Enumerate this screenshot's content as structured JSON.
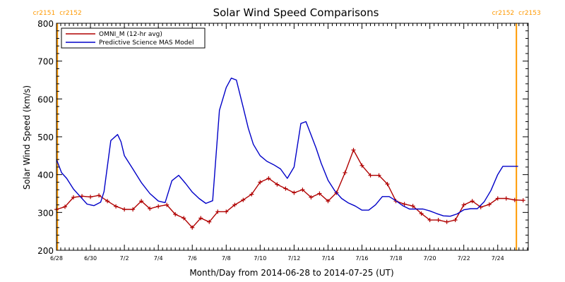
{
  "chart_data": {
    "type": "line",
    "title": "Solar Wind Speed Comparisons",
    "xlabel": "Month/Day from 2014-06-28 to 2014-07-25 (UT)",
    "ylabel": "Solar Wind Speed (km/s)",
    "xlim": [
      0,
      27.8
    ],
    "ylim": [
      200,
      800
    ],
    "x_unit": "days since 2014-06-28",
    "x_ticks": [
      {
        "x": 0,
        "label": "6/28"
      },
      {
        "x": 2,
        "label": "6/30"
      },
      {
        "x": 4,
        "label": "7/2"
      },
      {
        "x": 6,
        "label": "7/4"
      },
      {
        "x": 8,
        "label": "7/6"
      },
      {
        "x": 10,
        "label": "7/8"
      },
      {
        "x": 12,
        "label": "7/10"
      },
      {
        "x": 14,
        "label": "7/12"
      },
      {
        "x": 16,
        "label": "7/14"
      },
      {
        "x": 18,
        "label": "7/16"
      },
      {
        "x": 20,
        "label": "7/18"
      },
      {
        "x": 22,
        "label": "7/20"
      },
      {
        "x": 24,
        "label": "7/22"
      },
      {
        "x": 26,
        "label": "7/24"
      }
    ],
    "y_ticks": [
      200,
      300,
      400,
      500,
      600,
      700,
      800
    ],
    "legend_position": "top-left",
    "colors": {
      "omni": "#b00000",
      "model": "#0000c8",
      "rotation": "#ff9900",
      "axes": "#000000"
    },
    "rotation_markers": [
      {
        "x": 0.05,
        "left_label": "cr2151",
        "right_label": "cr2152"
      },
      {
        "x": 27.1,
        "left_label": "cr2152",
        "right_label": "cr2153"
      }
    ],
    "series": [
      {
        "name": "OMNI_M (12-hr avg)",
        "key": "omni",
        "markers": true,
        "x": [
          0.0,
          0.5,
          1.0,
          1.5,
          2.0,
          2.5,
          3.0,
          3.5,
          4.0,
          4.5,
          5.0,
          5.5,
          6.0,
          6.5,
          7.0,
          7.5,
          8.0,
          8.5,
          9.0,
          9.5,
          10.0,
          10.5,
          11.0,
          11.5,
          12.0,
          12.5,
          13.0,
          13.5,
          14.0,
          14.5,
          15.0,
          15.5,
          16.0,
          16.5,
          17.0,
          17.5,
          18.0,
          18.5,
          19.0,
          19.5,
          20.0,
          20.5,
          21.0,
          21.5,
          22.0,
          22.5,
          23.0,
          23.5,
          24.0,
          24.5,
          25.0,
          25.5,
          26.0,
          26.5,
          27.0,
          27.5
        ],
        "y": [
          308,
          315,
          340,
          343,
          341,
          345,
          330,
          316,
          308,
          308,
          330,
          310,
          316,
          320,
          295,
          285,
          260,
          285,
          275,
          302,
          302,
          320,
          333,
          348,
          380,
          390,
          374,
          363,
          352,
          360,
          340,
          350,
          330,
          352,
          405,
          465,
          424,
          398,
          398,
          375,
          330,
          322,
          317,
          297,
          280,
          280,
          275,
          280,
          320,
          330,
          314,
          321,
          337,
          337,
          333,
          332
        ]
      },
      {
        "name": "Predictive Science MAS Model",
        "key": "model",
        "markers": false,
        "x": [
          0.0,
          0.3,
          0.6,
          1.0,
          1.4,
          1.8,
          2.2,
          2.6,
          2.8,
          3.2,
          3.6,
          3.8,
          4.0,
          4.5,
          5.0,
          5.5,
          6.0,
          6.4,
          6.8,
          7.2,
          7.6,
          8.0,
          8.4,
          8.8,
          9.2,
          9.6,
          10.0,
          10.3,
          10.6,
          11.0,
          11.3,
          11.6,
          12.0,
          12.4,
          12.8,
          13.2,
          13.6,
          14.0,
          14.4,
          14.7,
          15.0,
          15.3,
          15.6,
          16.0,
          16.4,
          16.8,
          17.2,
          17.6,
          18.0,
          18.4,
          18.8,
          19.2,
          19.6,
          20.0,
          20.4,
          20.8,
          21.2,
          21.6,
          22.0,
          22.4,
          22.8,
          23.2,
          23.6,
          24.0,
          24.4,
          24.8,
          25.2,
          25.6,
          26.0,
          26.3,
          26.6,
          27.0,
          27.2
        ],
        "y": [
          440,
          405,
          390,
          362,
          342,
          322,
          318,
          327,
          355,
          490,
          506,
          487,
          450,
          415,
          379,
          350,
          330,
          326,
          384,
          398,
          377,
          354,
          337,
          324,
          331,
          570,
          630,
          655,
          650,
          578,
          523,
          480,
          450,
          435,
          426,
          415,
          390,
          420,
          535,
          540,
          505,
          470,
          430,
          385,
          357,
          337,
          325,
          317,
          306,
          306,
          320,
          342,
          342,
          331,
          318,
          309,
          309,
          309,
          304,
          297,
          291,
          290,
          296,
          307,
          310,
          310,
          328,
          358,
          400,
          422,
          422,
          422,
          422
        ]
      }
    ]
  }
}
